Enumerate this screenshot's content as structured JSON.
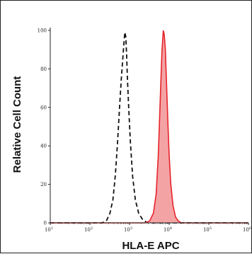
{
  "chart_data": {
    "type": "area",
    "title": "",
    "xlabel": "HLA-E APC",
    "ylabel": "Relative Cell Count",
    "x_scale": "log",
    "xlim": [
      10,
      1000000
    ],
    "ylim": [
      0,
      100
    ],
    "grid": false,
    "x_ticks": [
      {
        "value": 10,
        "base": "10",
        "exp": "1"
      },
      {
        "value": 100,
        "base": "10",
        "exp": "2"
      },
      {
        "value": 1000,
        "base": "10",
        "exp": "3"
      },
      {
        "value": 10000,
        "base": "10",
        "exp": "4"
      },
      {
        "value": 100000,
        "base": "10",
        "exp": "5"
      },
      {
        "value": 1000000,
        "base": "10",
        "exp": "6"
      }
    ],
    "y_ticks": [
      "0",
      "20",
      "40",
      "60",
      "80",
      "100"
    ],
    "series": [
      {
        "style": "dashed-outline",
        "color": "#111111",
        "points": [
          [
            10,
            0
          ],
          [
            200,
            0
          ],
          [
            260,
            1
          ],
          [
            320,
            5
          ],
          [
            380,
            12
          ],
          [
            440,
            25
          ],
          [
            500,
            42
          ],
          [
            560,
            60
          ],
          [
            620,
            75
          ],
          [
            680,
            86
          ],
          [
            720,
            93
          ],
          [
            760,
            99
          ],
          [
            800,
            97
          ],
          [
            840,
            88
          ],
          [
            880,
            76
          ],
          [
            950,
            60
          ],
          [
            1050,
            42
          ],
          [
            1200,
            24
          ],
          [
            1400,
            12
          ],
          [
            1700,
            5
          ],
          [
            2100,
            2
          ],
          [
            2600,
            0.5
          ],
          [
            3000,
            0
          ],
          [
            1000000,
            0
          ]
        ]
      },
      {
        "style": "filled",
        "color": "#e5242a",
        "fill": "#f4a3a5",
        "points": [
          [
            10,
            0
          ],
          [
            2500,
            0
          ],
          [
            3200,
            1
          ],
          [
            4000,
            5
          ],
          [
            4700,
            15
          ],
          [
            5300,
            35
          ],
          [
            5800,
            58
          ],
          [
            6200,
            75
          ],
          [
            6600,
            90
          ],
          [
            7100,
            100
          ],
          [
            7500,
            98
          ],
          [
            8000,
            90
          ],
          [
            8600,
            72
          ],
          [
            9300,
            52
          ],
          [
            10000,
            35
          ],
          [
            11000,
            20
          ],
          [
            12500,
            9
          ],
          [
            14500,
            3
          ],
          [
            17000,
            1
          ],
          [
            20000,
            0
          ],
          [
            1000000,
            0
          ]
        ]
      }
    ]
  }
}
